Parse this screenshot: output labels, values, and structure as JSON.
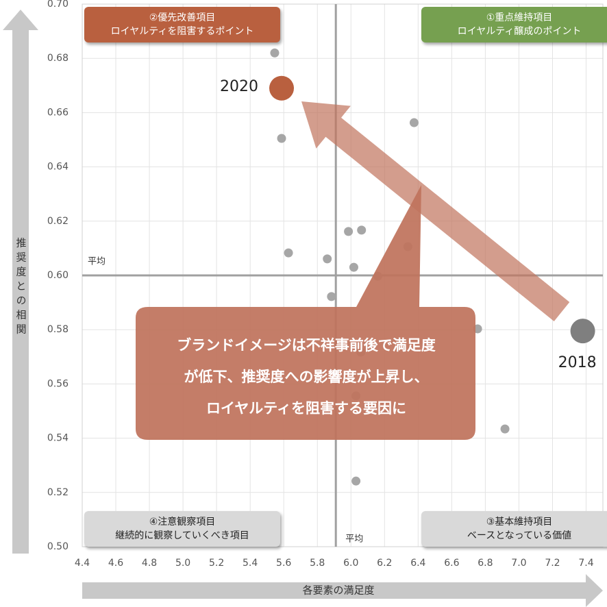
{
  "chart_data": {
    "type": "scatter",
    "x_label": "各要素の満足度",
    "y_label": "推奨度との相関",
    "xlim": [
      4.4,
      7.5
    ],
    "ylim": [
      0.5,
      0.7
    ],
    "xticks": [
      4.4,
      4.6,
      4.8,
      {
        "value": 5.0,
        "label": "5.0"
      },
      5.2,
      5.4,
      5.6,
      5.8,
      {
        "value": 6.0,
        "label": "6.0"
      },
      6.2,
      6.4,
      6.6,
      6.8,
      {
        "value": 7.0,
        "label": "7.0"
      },
      7.2,
      7.4
    ],
    "yticks": [
      {
        "value": 0.5,
        "label": "0.50"
      },
      {
        "value": 0.52,
        "label": "0.52"
      },
      {
        "value": 0.54,
        "label": "0.54"
      },
      {
        "value": 0.56,
        "label": "0.56"
      },
      {
        "value": 0.58,
        "label": "0.58"
      },
      {
        "value": 0.6,
        "label": "0.60"
      },
      {
        "value": 0.62,
        "label": "0.62"
      },
      {
        "value": 0.64,
        "label": "0.64"
      },
      {
        "value": 0.66,
        "label": "0.66"
      },
      {
        "value": 0.68,
        "label": "0.68"
      },
      {
        "value": 0.7,
        "label": "0.70"
      }
    ],
    "grid": true,
    "points": {
      "color": "#a6a6a6",
      "x": [
        5.546,
        5.587,
        6.376,
        5.985,
        6.063,
        6.339,
        5.628,
        5.859,
        6.017,
        6.16,
        5.884,
        6.754,
        6.059,
        6.03,
        6.917,
        6.03
      ],
      "y": [
        0.682,
        0.6505,
        0.6563,
        0.6162,
        0.6167,
        0.6106,
        0.6083,
        0.6061,
        0.603,
        0.5997,
        0.5922,
        0.5803,
        0.5717,
        0.5556,
        0.5434,
        0.5242
      ]
    },
    "highlights": [
      {
        "label": "2020",
        "x": 5.587,
        "y": 0.669,
        "color": "#b9603f"
      },
      {
        "label": "2018",
        "x": 7.38,
        "y": 0.5795,
        "color": "#7f7f7f"
      }
    ],
    "averages": [
      {
        "axis": "x",
        "value": 5.91,
        "label": "平均"
      },
      {
        "axis": "y",
        "value": 0.6,
        "label": "平均"
      }
    ],
    "quadrants": [
      {
        "title": "②優先改善項目",
        "subtitle": "ロイヤルティを阻害するポイント",
        "color": "#b9603f"
      },
      {
        "title": "①重点維持項目",
        "subtitle": "ロイヤルティ醸成のポイント",
        "color": "#76a050"
      },
      {
        "title": "④注意観察項目",
        "subtitle": "継続的に観察していくべき項目",
        "color": "#d9d9d9"
      },
      {
        "title": "③基本維持項目",
        "subtitle": "ベースとなっている価値",
        "color": "#d9d9d9"
      }
    ],
    "callout": [
      "ブランドイメージは不祥事前後で満足度",
      "が低下、推奨度への影響度が上昇し、",
      "ロイヤルティを阻害する要因に"
    ]
  }
}
